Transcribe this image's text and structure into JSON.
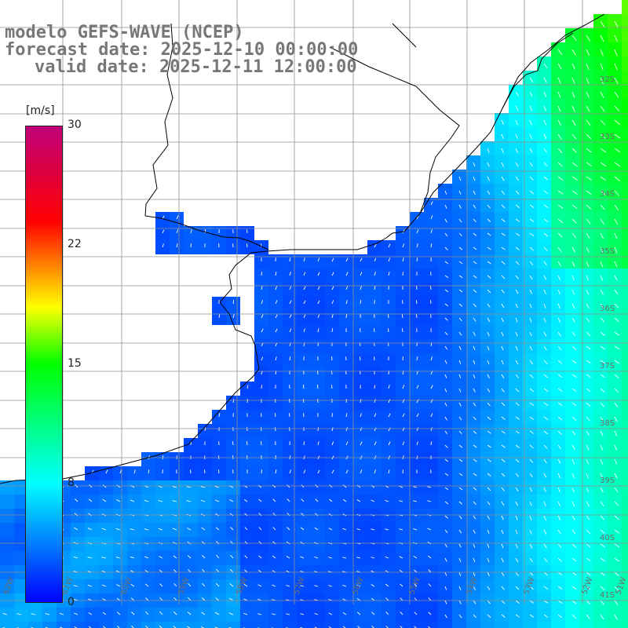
{
  "title": {
    "model": "modelo GEFS-WAVE (NCEP)",
    "forecast": "forecast date: 2025-12-10 00:00:00",
    "valid": "valid date: 2025-12-11 12:00:00"
  },
  "colorbar": {
    "unit": "[m/s]",
    "ticks": [
      "30",
      "22",
      "15",
      "8",
      "0"
    ],
    "colors": [
      "#0000ff",
      "#00ffff",
      "#00ff00",
      "#ffff00",
      "#ff0000",
      "#c0007a"
    ]
  },
  "lat_labels": [
    "32S",
    "33S",
    "34S",
    "35S",
    "36S",
    "37S",
    "38S",
    "39S",
    "40S",
    "41S"
  ],
  "lon_labels": [
    "62W",
    "61W",
    "60W",
    "59W",
    "58W",
    "57W",
    "56W",
    "55W",
    "54W",
    "53W",
    "52W",
    "51W"
  ],
  "colors": {
    "land": "#ffffff",
    "grid": "#8f8f8f",
    "coast": "#000000",
    "arrow": "#ffffff"
  }
}
